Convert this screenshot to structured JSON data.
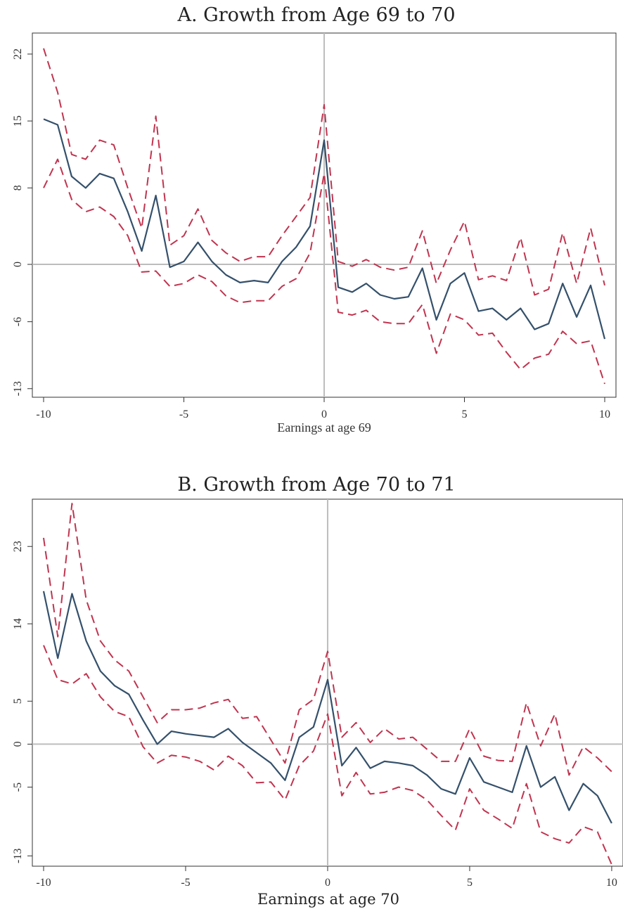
{
  "chart_data": [
    {
      "type": "line",
      "title": "A. Growth from Age 69 to 70",
      "xlabel": "Earnings at age 69",
      "ylabel": "",
      "xlim": [
        -10,
        10
      ],
      "ylim": [
        -13.9,
        24.2
      ],
      "xticks": [
        "-10",
        "-5",
        "0",
        "5",
        "10"
      ],
      "yticks": [
        "22",
        "15",
        "8",
        "0",
        "-6",
        "-13"
      ],
      "reference_lines": {
        "x": 0,
        "y": 0
      },
      "x": [
        -10,
        -9.5,
        -9,
        -8.5,
        -8,
        -7.5,
        -7,
        -6.5,
        -6,
        -5.5,
        -5,
        -4.5,
        -4,
        -3.5,
        -3,
        -2.5,
        -2,
        -1.5,
        -1,
        -0.5,
        0,
        0.5,
        1,
        1.5,
        2,
        2.5,
        3,
        3.5,
        4,
        4.5,
        5,
        5.5,
        6,
        6.5,
        7,
        7.5,
        8,
        8.5,
        9,
        9.5,
        10
      ],
      "series": [
        {
          "role": "estimate",
          "color": "#34506b",
          "values": [
            15.2,
            14.6,
            9.2,
            8.0,
            9.5,
            9.0,
            5.5,
            1.4,
            7.2,
            -0.3,
            0.3,
            2.3,
            0.3,
            -1.1,
            -1.9,
            -1.7,
            -1.9,
            0.3,
            1.8,
            4.0,
            13.0,
            -2.4,
            -2.9,
            -2.0,
            -3.2,
            -3.6,
            -3.4,
            -0.4,
            -5.8,
            -2.0,
            -0.9,
            -4.9,
            -4.6,
            -5.8,
            -4.6,
            -6.8,
            -6.2,
            -2.0,
            -5.5,
            -2.2,
            -7.8
          ]
        },
        {
          "role": "upper-ci",
          "color": "#c0344f",
          "values": [
            22.6,
            18.0,
            11.5,
            11.0,
            13.0,
            12.5,
            8.0,
            3.8,
            15.5,
            2.0,
            3.0,
            5.8,
            2.5,
            1.2,
            0.3,
            0.8,
            0.8,
            3.0,
            5.0,
            7.0,
            16.7,
            0.3,
            -0.2,
            0.5,
            -0.3,
            -0.6,
            -0.3,
            3.5,
            -2.0,
            1.5,
            4.5,
            -1.6,
            -1.2,
            -1.7,
            2.8,
            -3.2,
            -2.6,
            3.3,
            -2.0,
            3.8,
            -2.2
          ]
        },
        {
          "role": "lower-ci",
          "color": "#c0344f",
          "values": [
            8.0,
            11.0,
            6.8,
            5.5,
            6.0,
            5.0,
            3.0,
            -0.8,
            -0.7,
            -2.3,
            -2.0,
            -1.1,
            -1.8,
            -3.3,
            -4.0,
            -3.8,
            -3.8,
            -2.3,
            -1.5,
            1.2,
            9.5,
            -5.0,
            -5.3,
            -4.8,
            -6.0,
            -6.2,
            -6.2,
            -4.2,
            -9.3,
            -5.2,
            -5.8,
            -7.4,
            -7.2,
            -9.2,
            -11.0,
            -9.8,
            -9.4,
            -7.0,
            -8.3,
            -8.0,
            -12.5
          ]
        }
      ]
    },
    {
      "type": "line",
      "title": "B. Growth from Age 70 to 71",
      "xlabel": "Earnings at age 70",
      "ylabel": "",
      "xlim": [
        -10,
        10.2
      ],
      "ylim": [
        -14.2,
        28.5
      ],
      "xticks": [
        "-10",
        "-5",
        "0",
        "5",
        "10"
      ],
      "yticks": [
        "23",
        "14",
        "5",
        "0",
        "-5",
        "-13"
      ],
      "reference_lines": {
        "x": 0,
        "y": 0
      },
      "x": [
        -10,
        -9.5,
        -9,
        -8.5,
        -8,
        -7.5,
        -7,
        -6.5,
        -6,
        -5.5,
        -5,
        -4.5,
        -4,
        -3.5,
        -3,
        -2.5,
        -2,
        -1.5,
        -1,
        -0.5,
        0,
        0.5,
        1,
        1.5,
        2,
        2.5,
        3,
        3.5,
        4,
        4.5,
        5,
        5.5,
        6,
        6.5,
        7,
        7.5,
        8,
        8.5,
        9,
        9.5,
        10
      ],
      "series": [
        {
          "role": "estimate",
          "color": "#34506b",
          "values": [
            17.8,
            10.0,
            17.5,
            12.0,
            8.5,
            6.8,
            5.8,
            2.8,
            0.0,
            1.5,
            1.2,
            1.0,
            0.8,
            1.8,
            0.2,
            -1.0,
            -2.2,
            -4.2,
            0.8,
            2.0,
            7.5,
            -2.5,
            -0.4,
            -2.8,
            -2.0,
            -2.2,
            -2.5,
            -3.6,
            -5.2,
            -5.8,
            -1.6,
            -4.4,
            -5.0,
            -5.6,
            -0.2,
            -5.0,
            -3.8,
            -7.7,
            -4.6,
            -6.0,
            -9.2
          ]
        },
        {
          "role": "upper-ci",
          "color": "#c0344f",
          "values": [
            24.0,
            12.5,
            28.0,
            16.8,
            12.0,
            9.8,
            8.5,
            5.5,
            2.5,
            4.0,
            4.0,
            4.2,
            4.8,
            5.2,
            3.0,
            3.2,
            0.5,
            -2.2,
            4.0,
            5.2,
            10.8,
            0.8,
            2.5,
            0.2,
            1.8,
            0.6,
            0.8,
            -0.6,
            -2.0,
            -2.0,
            1.8,
            -1.4,
            -1.9,
            -2.0,
            4.8,
            -0.2,
            3.5,
            -3.6,
            -0.3,
            -1.6,
            -3.2
          ]
        },
        {
          "role": "lower-ci",
          "color": "#c0344f",
          "values": [
            11.5,
            7.5,
            7.0,
            8.2,
            5.5,
            3.8,
            3.2,
            -0.3,
            -2.2,
            -1.3,
            -1.5,
            -2.0,
            -3.0,
            -1.4,
            -2.5,
            -4.5,
            -4.4,
            -6.5,
            -2.5,
            -0.8,
            3.5,
            -6.0,
            -3.3,
            -5.8,
            -5.6,
            -5.0,
            -5.4,
            -6.5,
            -8.3,
            -10.0,
            -5.2,
            -7.7,
            -8.7,
            -9.8,
            -4.6,
            -10.2,
            -11.0,
            -11.5,
            -9.6,
            -10.2,
            -14.0
          ]
        }
      ]
    }
  ]
}
